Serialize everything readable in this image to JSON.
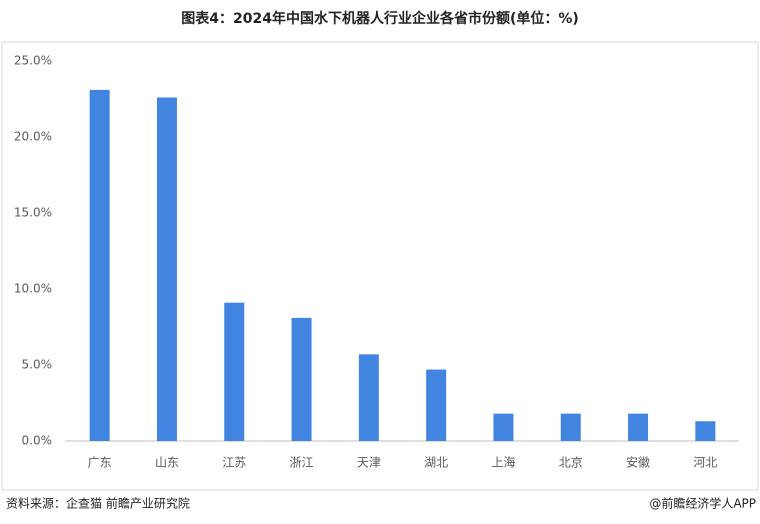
{
  "chart_data": {
    "type": "bar",
    "title": "图表4：2024年中国水下机器人行业企业各省市份额(单位：%)",
    "categories": [
      "广东",
      "山东",
      "江苏",
      "浙江",
      "天津",
      "湖北",
      "上海",
      "北京",
      "安徽",
      "河北"
    ],
    "values": [
      23.1,
      22.6,
      9.1,
      8.1,
      5.7,
      4.7,
      1.8,
      1.8,
      1.8,
      1.3
    ],
    "color": "#4285e0",
    "ylim": [
      0,
      25
    ],
    "yticks": [
      {
        "value": 0,
        "label": "0.0%"
      },
      {
        "value": 5,
        "label": "5.0%"
      },
      {
        "value": 10,
        "label": "10.0%"
      },
      {
        "value": 15,
        "label": "15.0%"
      },
      {
        "value": 20,
        "label": "20.0%"
      },
      {
        "value": 25,
        "label": "25.0%"
      }
    ],
    "grid": false,
    "source": "资料来源：企查猫 前瞻产业研究院",
    "credit": "@前瞻经济学人APP"
  }
}
